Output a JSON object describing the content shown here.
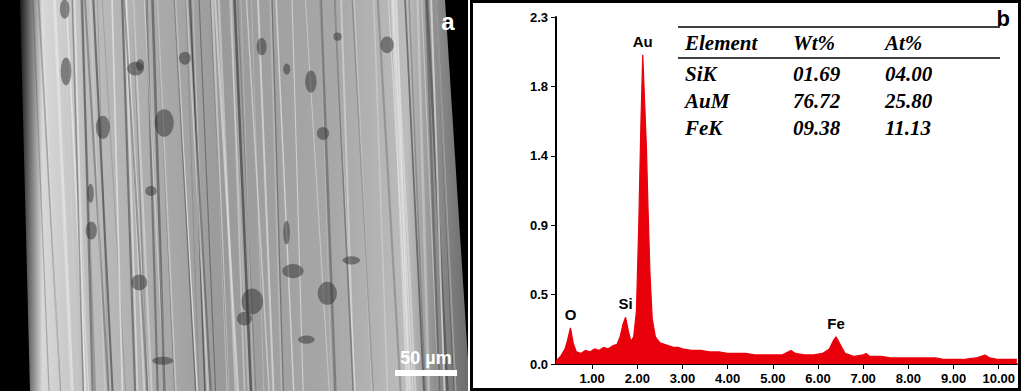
{
  "image_panel": {
    "label": "a",
    "scale_bar": "50 µm"
  },
  "chart_data": {
    "type": "line",
    "title": "b",
    "color": "#e8000b",
    "grid": false,
    "x": [
      0.2,
      0.3,
      0.4,
      0.45,
      0.52,
      0.58,
      0.65,
      0.75,
      0.85,
      0.95,
      1.05,
      1.15,
      1.25,
      1.35,
      1.45,
      1.55,
      1.62,
      1.68,
      1.74,
      1.8,
      1.86,
      1.92,
      1.98,
      2.03,
      2.08,
      2.12,
      2.16,
      2.2,
      2.24,
      2.28,
      2.33,
      2.4,
      2.5,
      2.6,
      2.7,
      2.8,
      2.9,
      3.0,
      3.2,
      3.4,
      3.6,
      3.8,
      4.0,
      4.2,
      4.4,
      4.6,
      4.8,
      5.0,
      5.2,
      5.4,
      5.5,
      5.7,
      5.9,
      6.1,
      6.25,
      6.35,
      6.4,
      6.47,
      6.6,
      6.8,
      7.0,
      7.06,
      7.15,
      7.4,
      7.6,
      7.8,
      8.0,
      8.2,
      8.4,
      8.6,
      8.8,
      9.0,
      9.2,
      9.5,
      9.7,
      9.8,
      10.0,
      10.2,
      10.4
    ],
    "values": [
      0.02,
      0.05,
      0.1,
      0.15,
      0.24,
      0.14,
      0.08,
      0.07,
      0.09,
      0.08,
      0.1,
      0.09,
      0.11,
      0.1,
      0.12,
      0.13,
      0.18,
      0.26,
      0.31,
      0.22,
      0.15,
      0.18,
      0.35,
      0.9,
      1.6,
      2.05,
      1.75,
      1.45,
      1.0,
      0.6,
      0.3,
      0.18,
      0.14,
      0.13,
      0.12,
      0.11,
      0.11,
      0.1,
      0.09,
      0.09,
      0.08,
      0.08,
      0.07,
      0.07,
      0.07,
      0.06,
      0.06,
      0.06,
      0.06,
      0.09,
      0.07,
      0.06,
      0.06,
      0.07,
      0.1,
      0.16,
      0.18,
      0.14,
      0.07,
      0.05,
      0.06,
      0.07,
      0.05,
      0.05,
      0.04,
      0.04,
      0.04,
      0.04,
      0.04,
      0.04,
      0.03,
      0.03,
      0.03,
      0.04,
      0.06,
      0.04,
      0.03,
      0.03,
      0.03
    ],
    "xlim": [
      0.2,
      10.4
    ],
    "xticks": [
      {
        "value": 1,
        "label": "1.00"
      },
      {
        "value": 2,
        "label": "2.00"
      },
      {
        "value": 3,
        "label": "3.00"
      },
      {
        "value": 4,
        "label": "4.00"
      },
      {
        "value": 5,
        "label": "5.00"
      },
      {
        "value": 6,
        "label": "6.00"
      },
      {
        "value": 7,
        "label": "7.00"
      },
      {
        "value": 8,
        "label": "8.00"
      },
      {
        "value": 9,
        "label": "9.00"
      },
      {
        "value": 10,
        "label": "10.00"
      }
    ],
    "ylim": [
      0,
      2.3
    ],
    "yticks": [
      {
        "value": 0,
        "label": "0.0"
      },
      {
        "value": 0.46,
        "label": "0.5"
      },
      {
        "value": 0.92,
        "label": "0.9"
      },
      {
        "value": 1.38,
        "label": "1.4"
      },
      {
        "value": 1.84,
        "label": "1.8"
      },
      2.3
    ],
    "annotations": [
      {
        "text": "O",
        "x": 0.52
      },
      {
        "text": "Si",
        "x": 1.74
      },
      {
        "text": "Au",
        "x": 2.12
      },
      {
        "text": "Fe",
        "x": 6.4
      }
    ],
    "table": {
      "columns": [
        "Element",
        "Wt%",
        "At%"
      ],
      "rows": [
        [
          "SiK",
          "01.69",
          "04.00"
        ],
        [
          "AuM",
          "76.72",
          "25.80"
        ],
        [
          "FeK",
          "09.38",
          "11.13"
        ]
      ]
    }
  }
}
